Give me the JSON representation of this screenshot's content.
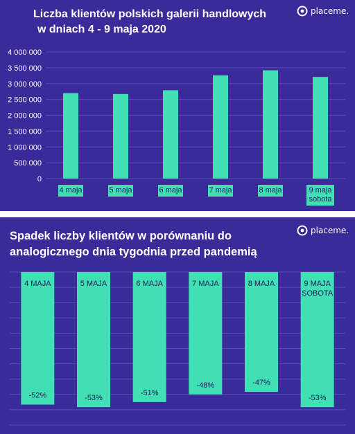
{
  "top_panel": {
    "title_line1": "Liczba klientów polskich galerii handlowych",
    "title_line2": "w dniach 4 - 9 maja 2020",
    "brand": "placeme."
  },
  "bottom_panel": {
    "title_line1": "Spadek liczby klientów w porównaniu do",
    "title_line2": "analogicznego dnia tygodnia przed pandemią",
    "brand": "placeme."
  },
  "colors": {
    "background": "#3a2a9a",
    "bar": "#40e0b4",
    "grid": "#5a4cc0",
    "text": "#ffffff",
    "label_dark": "#1a1a5a"
  },
  "chart_data": [
    {
      "type": "bar",
      "title": "Liczba klientów polskich galerii handlowych w dniach 4 - 9 maja 2020",
      "categories": [
        "4 maja",
        "5 maja",
        "6 maja",
        "7 maja",
        "8 maja",
        "9 maja sobota"
      ],
      "category_lines": [
        [
          "4 maja"
        ],
        [
          "5 maja"
        ],
        [
          "6 maja"
        ],
        [
          "7 maja"
        ],
        [
          "8 maja"
        ],
        [
          "9 maja",
          "sobota"
        ]
      ],
      "values": [
        2700000,
        2670000,
        2790000,
        3260000,
        3420000,
        3210000
      ],
      "ylim": [
        0,
        4000000
      ],
      "yticks": [
        0,
        500000,
        1000000,
        1500000,
        2000000,
        2500000,
        3000000,
        3500000,
        4000000
      ],
      "ytick_labels": [
        "0",
        "500 000",
        "1 000 000",
        "1 500 000",
        "2 000 000",
        "2 500 000",
        "3 000 000",
        "3 500 000",
        "4 000 000"
      ],
      "grid": true
    },
    {
      "type": "bar",
      "title": "Spadek liczby klientów w porównaniu do analogicznego dnia tygodnia przed pandemią",
      "categories": [
        "4 MAJA",
        "5 MAJA",
        "6 MAJA",
        "7 MAJA",
        "8 MAJA",
        "9 MAJA SOBOTA"
      ],
      "category_lines": [
        [
          "4 MAJA"
        ],
        [
          "5 MAJA"
        ],
        [
          "6 MAJA"
        ],
        [
          "7 MAJA"
        ],
        [
          "8 MAJA"
        ],
        [
          "9 MAJA",
          "SOBOTA"
        ]
      ],
      "values": [
        -52,
        -53,
        -51,
        -48,
        -47,
        -53
      ],
      "value_labels": [
        "-52%",
        "-53%",
        "-51%",
        "-48%",
        "-47%",
        "-53%"
      ],
      "unit": "%",
      "grid": true
    }
  ]
}
